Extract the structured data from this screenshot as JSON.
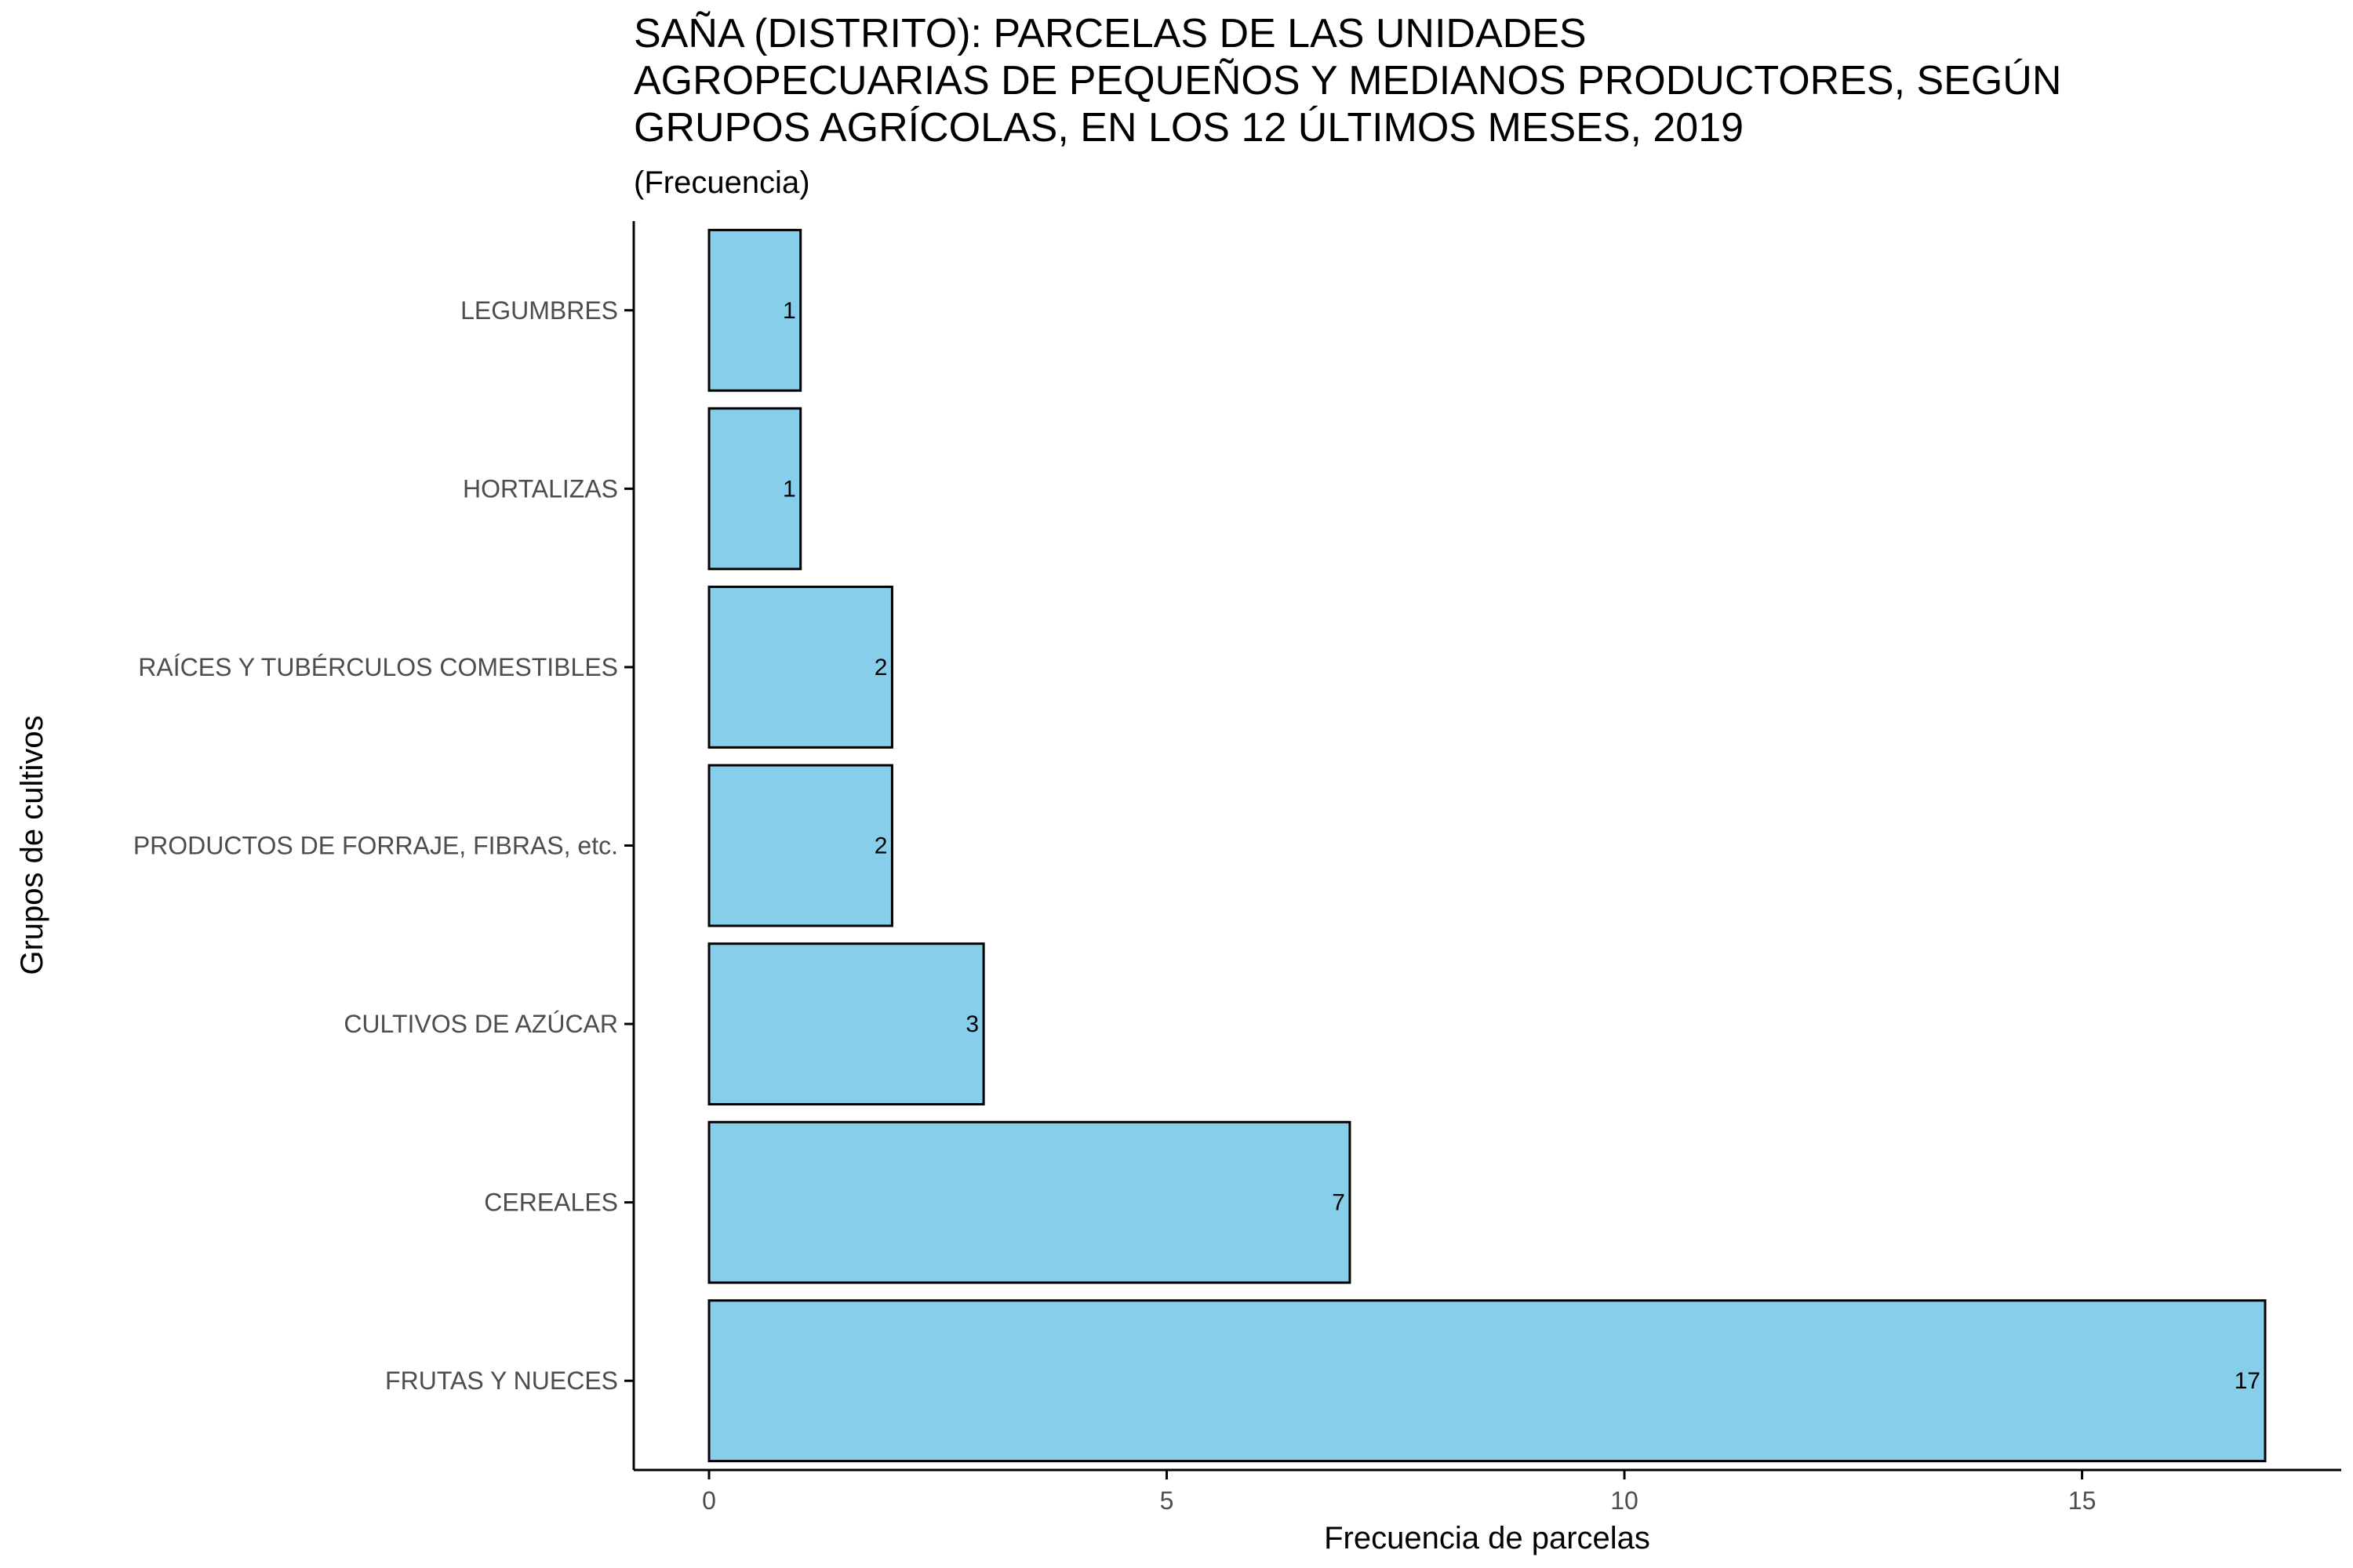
{
  "chart_data": {
    "type": "bar",
    "orientation": "horizontal",
    "title_lines": [
      "SAÑA (DISTRITO): PARCELAS DE LAS UNIDADES",
      "AGROPECUARIAS DE PEQUEÑOS Y MEDIANOS PRODUCTORES, SEGÚN",
      "GRUPOS AGRÍCOLAS, EN LOS 12 ÚLTIMOS MESES, 2019"
    ],
    "subtitle": "(Frecuencia)",
    "xlabel": "Frecuencia de parcelas",
    "ylabel": "Grupos de cultivos",
    "categories": [
      "LEGUMBRES",
      "HORTALIZAS",
      "RAÍCES Y TUBÉRCULOS COMESTIBLES",
      "PRODUCTOS DE FORRAJE, FIBRAS, etc.",
      "CULTIVOS DE AZÚCAR",
      "CEREALES",
      "FRUTAS Y NUECES"
    ],
    "values": [
      1,
      1,
      2,
      2,
      3,
      7,
      17
    ],
    "xlim": [
      0,
      17.85
    ],
    "xticks": [
      0,
      5,
      10,
      15
    ],
    "bar_color": "#87CEEB",
    "bar_border": "#000000",
    "grid": false,
    "legend": "none"
  }
}
